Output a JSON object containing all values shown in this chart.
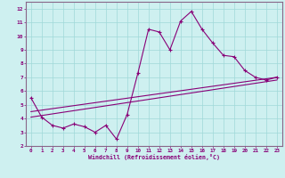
{
  "xlabel": "Windchill (Refroidissement éolien,°C)",
  "bg_color": "#cef0f0",
  "grid_color": "#a0d8d8",
  "line_color": "#880077",
  "spine_color": "#886688",
  "xlim": [
    -0.5,
    23.5
  ],
  "ylim": [
    2,
    12.5
  ],
  "xticks": [
    0,
    1,
    2,
    3,
    4,
    5,
    6,
    7,
    8,
    9,
    10,
    11,
    12,
    13,
    14,
    15,
    16,
    17,
    18,
    19,
    20,
    21,
    22,
    23
  ],
  "yticks": [
    2,
    3,
    4,
    5,
    6,
    7,
    8,
    9,
    10,
    11,
    12
  ],
  "line1_x": [
    0,
    1,
    2,
    3,
    4,
    5,
    6,
    7,
    8,
    9,
    10,
    11,
    12,
    13,
    14,
    15,
    16,
    17,
    18,
    19,
    20,
    21,
    22,
    23
  ],
  "line1_y": [
    5.5,
    4.1,
    3.5,
    3.3,
    3.6,
    3.4,
    3.0,
    3.5,
    2.5,
    4.3,
    7.3,
    10.5,
    10.3,
    9.0,
    11.1,
    11.8,
    10.5,
    9.5,
    8.6,
    8.5,
    7.5,
    7.0,
    6.8,
    7.0
  ],
  "line2_x": [
    0,
    23
  ],
  "line2_y": [
    4.1,
    6.8
  ],
  "line3_x": [
    0,
    23
  ],
  "line3_y": [
    4.5,
    7.0
  ],
  "marker": "+"
}
